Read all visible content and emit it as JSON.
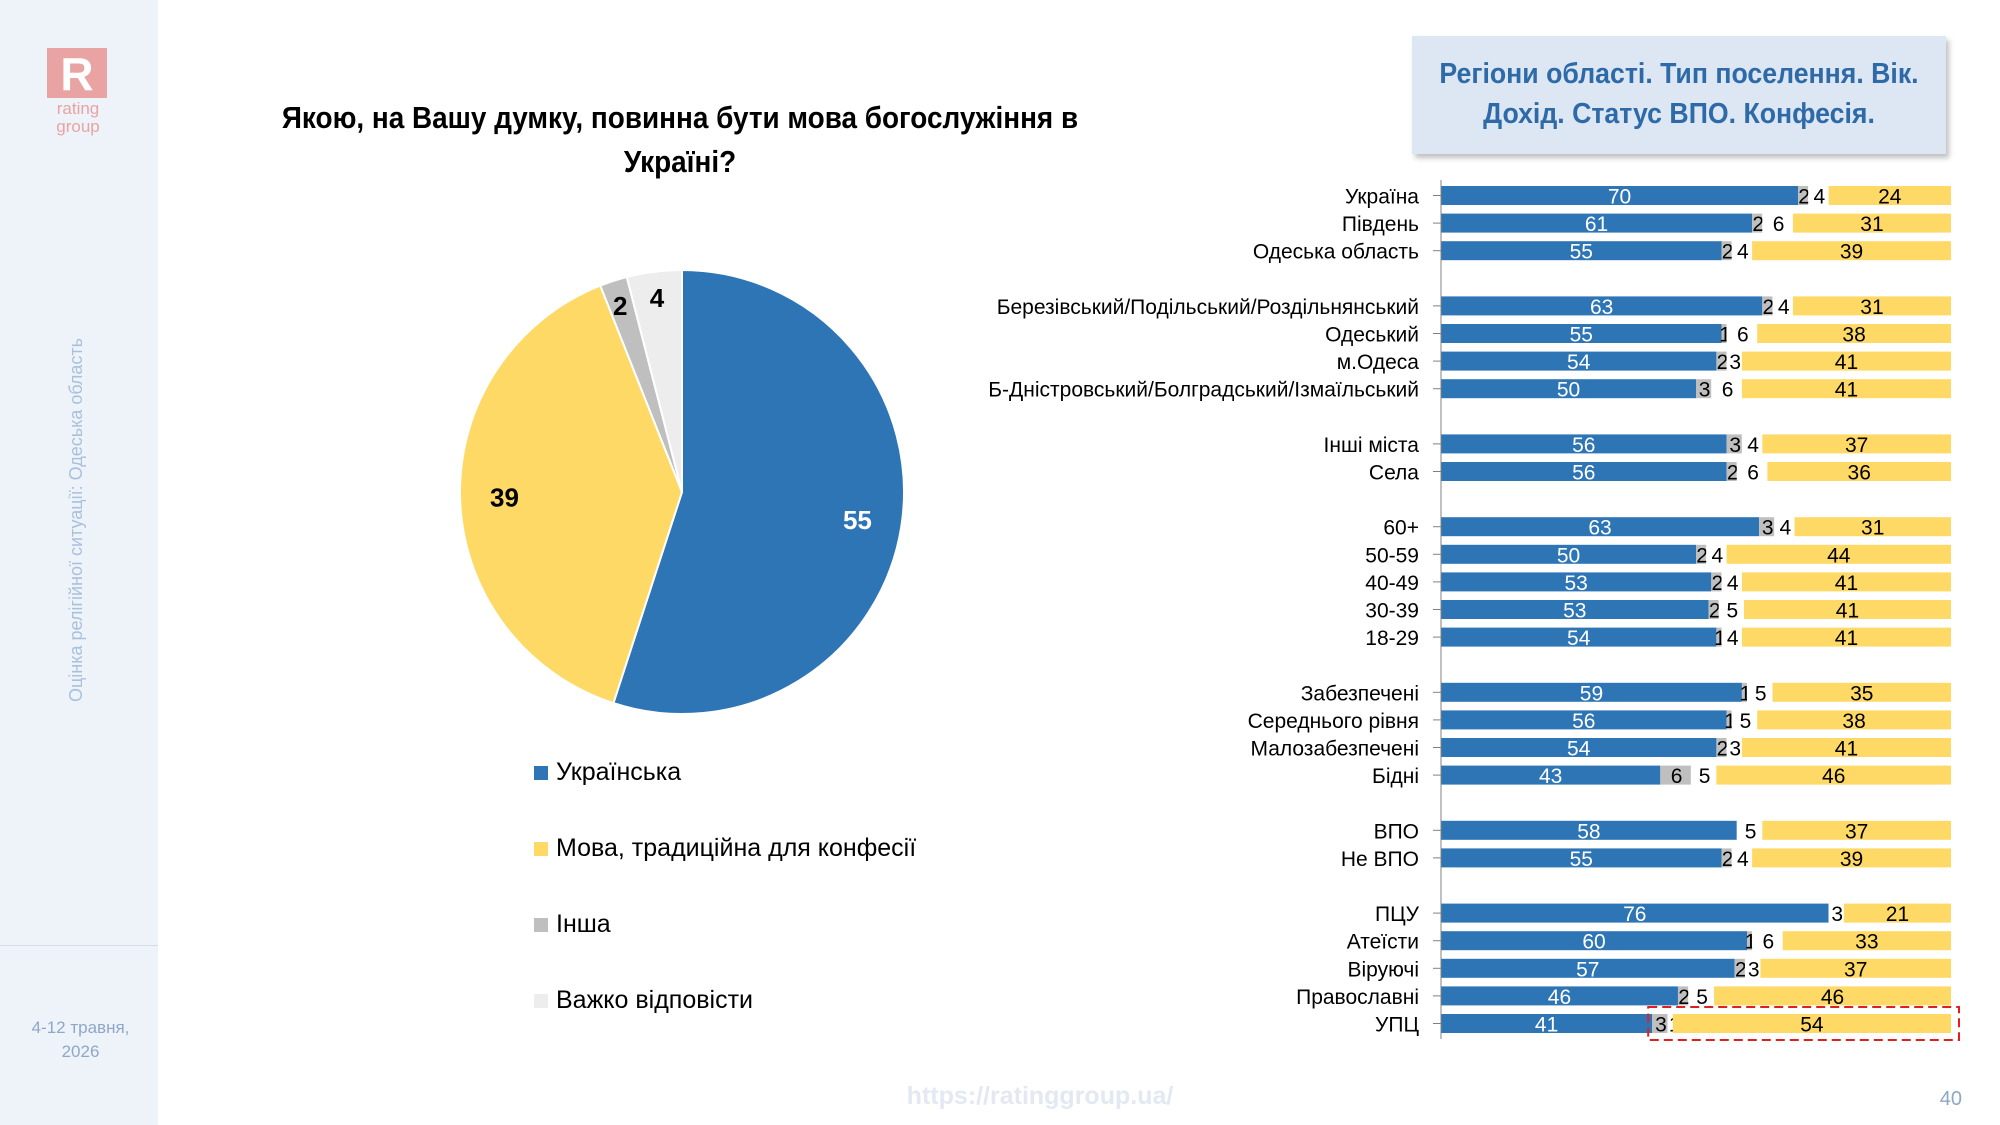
{
  "brand": {
    "logo_letter": "R",
    "logo_text_1": "rating",
    "logo_text_2": "group"
  },
  "sidebar": {
    "vertical_title": "Оцінка релігійної ситуації: Одеська область",
    "date_line_1": "4-12 травня,",
    "date_line_2": "2026"
  },
  "question": "Якою, на Вашу думку, повинна бути мова богослужіння в Україні?",
  "header_box": {
    "line1": "Регіони області. Тип поселення. Вік.",
    "line2": "Дохід. Статус ВПО. Конфесія."
  },
  "colors": {
    "ukrainian": "#2e75b6",
    "traditional": "#ffd966",
    "other": "#bfbfbf",
    "hard": "#ededed",
    "highlight": "#e02020"
  },
  "chart_data": [
    {
      "type": "pie",
      "categories": [
        "Українська",
        "Мова, традиційна для конфесії",
        "Інша",
        "Важко відповісти"
      ],
      "values": [
        55,
        39,
        2,
        4
      ],
      "legend": "bottom"
    },
    {
      "type": "bar",
      "orientation": "horizontal-stacked",
      "series_names": [
        "Українська",
        "Інша",
        "Важко відповісти",
        "Мова, традиційна для конфесії"
      ],
      "groups": [
        [
          {
            "label": "Україна",
            "v": [
              70,
              2,
              4,
              24
            ]
          },
          {
            "label": "Південь",
            "v": [
              61,
              2,
              6,
              31
            ]
          },
          {
            "label": "Одеська область",
            "v": [
              55,
              2,
              4,
              39
            ]
          }
        ],
        [
          {
            "label": "Березівський/Подільський/Роздільнянський",
            "v": [
              63,
              2,
              4,
              31
            ]
          },
          {
            "label": "Одеський",
            "v": [
              55,
              1,
              6,
              38
            ]
          },
          {
            "label": "м.Одеса",
            "v": [
              54,
              2,
              3,
              41
            ]
          },
          {
            "label": "Б-Дністровський/Болградський/Ізмаїльський",
            "v": [
              50,
              3,
              6,
              41
            ]
          }
        ],
        [
          {
            "label": "Інші міста",
            "v": [
              56,
              3,
              4,
              37
            ]
          },
          {
            "label": "Села",
            "v": [
              56,
              2,
              6,
              36
            ]
          }
        ],
        [
          {
            "label": "60+",
            "v": [
              63,
              3,
              4,
              31
            ]
          },
          {
            "label": "50-59",
            "v": [
              50,
              2,
              4,
              44
            ]
          },
          {
            "label": "40-49",
            "v": [
              53,
              2,
              4,
              41
            ]
          },
          {
            "label": "30-39",
            "v": [
              53,
              2,
              5,
              41
            ]
          },
          {
            "label": "18-29",
            "v": [
              54,
              1,
              4,
              41
            ]
          }
        ],
        [
          {
            "label": "Забезпечені",
            "v": [
              59,
              1,
              5,
              35
            ]
          },
          {
            "label": "Середнього рівня",
            "v": [
              56,
              1,
              5,
              38
            ]
          },
          {
            "label": "Малозабезпечені",
            "v": [
              54,
              2,
              3,
              41
            ]
          },
          {
            "label": "Бідні",
            "v": [
              43,
              6,
              5,
              46
            ]
          }
        ],
        [
          {
            "label": "ВПО",
            "v": [
              58,
              0,
              5,
              37
            ]
          },
          {
            "label": "Не ВПО",
            "v": [
              55,
              2,
              4,
              39
            ]
          }
        ],
        [
          {
            "label": "ПЦУ",
            "v": [
              76,
              0,
              3,
              21
            ]
          },
          {
            "label": "Атеїсти",
            "v": [
              60,
              1,
              6,
              33
            ]
          },
          {
            "label": "Віруючі",
            "v": [
              57,
              2,
              3,
              37
            ]
          },
          {
            "label": "Православні",
            "v": [
              46,
              2,
              5,
              46
            ]
          },
          {
            "label": "УПЦ",
            "v": [
              41,
              3,
              1,
              54
            ],
            "highlight": true
          }
        ]
      ]
    }
  ],
  "footer": {
    "url": "https://ratinggroup.ua/",
    "page": "40"
  }
}
